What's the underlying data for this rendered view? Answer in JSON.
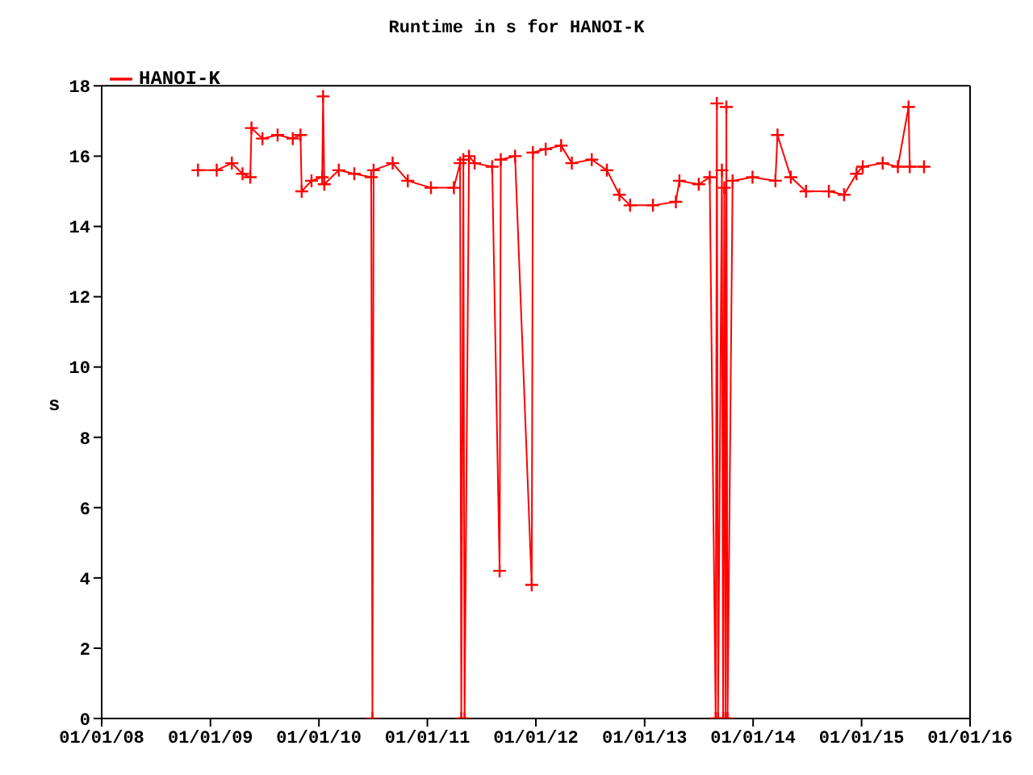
{
  "chart_data": {
    "type": "line",
    "title": "Runtime in s for HANOI-K",
    "ylabel": "s",
    "x": [
      "2008-11-20",
      "2009-01-22",
      "2009-03-14",
      "2009-04-19",
      "2009-05-15",
      "2009-05-19",
      "2009-06-25",
      "2009-08-15",
      "2009-10-05",
      "2009-10-31",
      "2009-11-04",
      "2009-12-07",
      "2010-01-12",
      "2010-01-15",
      "2010-01-19",
      "2010-03-09",
      "2010-04-30",
      "2010-06-26",
      "2010-06-30",
      "2010-07-04",
      "2010-09-06",
      "2010-10-27",
      "2011-01-13",
      "2011-03-31",
      "2011-04-21",
      "2011-04-25",
      "2011-05-02",
      "2011-05-06",
      "2011-05-21",
      "2011-06-09",
      "2011-08-07",
      "2011-09-01",
      "2011-09-05",
      "2011-10-23",
      "2011-12-18",
      "2011-12-22",
      "2012-02-03",
      "2012-03-26",
      "2012-05-01",
      "2012-07-07",
      "2012-08-27",
      "2012-10-08",
      "2012-11-13",
      "2013-01-29",
      "2013-04-16",
      "2013-04-28",
      "2013-07-02",
      "2013-08-08",
      "2013-08-28",
      "2013-09-01",
      "2013-09-05",
      "2013-09-18",
      "2013-09-22",
      "2013-09-26",
      "2013-09-30",
      "2013-10-03",
      "2013-10-07",
      "2013-10-24",
      "2013-12-30",
      "2014-03-17",
      "2014-03-24",
      "2014-05-08",
      "2014-06-28",
      "2014-09-13",
      "2014-11-03",
      "2014-12-15",
      "2015-01-05",
      "2015-03-13",
      "2015-05-03",
      "2015-06-08",
      "2015-06-12",
      "2015-07-30"
    ],
    "series": [
      {
        "name": "HANOI-K",
        "color": "#ff0000",
        "values": [
          15.6,
          15.6,
          15.8,
          15.5,
          15.4,
          16.8,
          16.5,
          16.6,
          16.5,
          16.6,
          15.0,
          15.3,
          15.4,
          17.7,
          15.2,
          15.6,
          15.5,
          15.4,
          0,
          15.6,
          15.8,
          15.3,
          15.1,
          15.1,
          15.8,
          0,
          15.9,
          0,
          16.0,
          15.8,
          15.7,
          4.2,
          15.9,
          16.0,
          3.8,
          16.1,
          16.2,
          16.3,
          15.8,
          15.9,
          15.6,
          14.9,
          14.6,
          14.6,
          14.7,
          15.3,
          15.2,
          15.4,
          0,
          17.5,
          0,
          15.6,
          0,
          15.1,
          0,
          17.4,
          0,
          15.3,
          15.4,
          15.3,
          16.6,
          15.4,
          15.0,
          15.0,
          14.9,
          15.5,
          15.7,
          15.8,
          15.7,
          17.4,
          15.7,
          15.7
        ]
      }
    ],
    "xlim": [
      "2008-01-01",
      "2016-01-01"
    ],
    "xticks": [
      {
        "value": "2008-01-01",
        "label": "01/01/08"
      },
      {
        "value": "2009-01-01",
        "label": "01/01/09"
      },
      {
        "value": "2010-01-01",
        "label": "01/01/10"
      },
      {
        "value": "2011-01-01",
        "label": "01/01/11"
      },
      {
        "value": "2012-01-01",
        "label": "01/01/12"
      },
      {
        "value": "2013-01-01",
        "label": "01/01/13"
      },
      {
        "value": "2014-01-01",
        "label": "01/01/14"
      },
      {
        "value": "2015-01-01",
        "label": "01/01/15"
      },
      {
        "value": "2016-01-01",
        "label": "01/01/16"
      }
    ],
    "ylim": [
      0,
      18
    ],
    "yticks": [
      0,
      2,
      4,
      6,
      8,
      10,
      12,
      14,
      16,
      18
    ],
    "grid": false,
    "legend": "top left",
    "marker": "cross",
    "line_style": "solid"
  }
}
